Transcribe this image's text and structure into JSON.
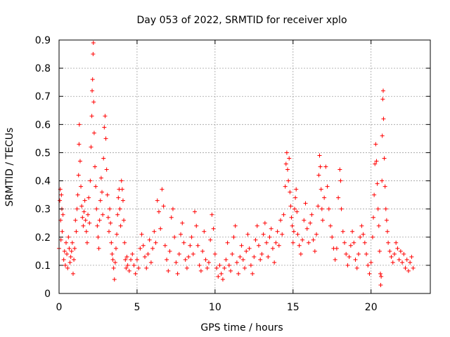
{
  "chart_data": {
    "type": "scatter",
    "title": "Day 053 of 2022, SRMTID for receiver xplo",
    "xlabel": "GPS time / hours",
    "ylabel": "SRMTID / TECUs",
    "xlim": [
      0,
      23.8
    ],
    "ylim": [
      0,
      0.9
    ],
    "x_ticks": [
      0,
      5,
      10,
      15,
      20
    ],
    "x_tick_labels": [
      "0",
      "5",
      "10",
      "15",
      "20"
    ],
    "y_ticks": [
      0,
      0.1,
      0.2,
      0.3,
      0.4,
      0.5,
      0.6,
      0.7,
      0.8,
      0.9
    ],
    "y_tick_labels": [
      "0",
      "0.1",
      "0.2",
      "0.3",
      "0.4",
      "0.5",
      "0.6",
      "0.7",
      "0.8",
      "0.9"
    ],
    "grid": true,
    "marker": "plus",
    "color": "#ff0000",
    "series": [
      {
        "name": "SRMTID",
        "points": [
          [
            0.0,
            0.16
          ],
          [
            0.05,
            0.33
          ],
          [
            0.08,
            0.37
          ],
          [
            0.1,
            0.26
          ],
          [
            0.12,
            0.19
          ],
          [
            0.15,
            0.35
          ],
          [
            0.18,
            0.3
          ],
          [
            0.2,
            0.22
          ],
          [
            0.25,
            0.28
          ],
          [
            0.3,
            0.12
          ],
          [
            0.35,
            0.15
          ],
          [
            0.4,
            0.1
          ],
          [
            0.45,
            0.18
          ],
          [
            0.5,
            0.14
          ],
          [
            0.55,
            0.09
          ],
          [
            0.6,
            0.2
          ],
          [
            0.65,
            0.16
          ],
          [
            0.7,
            0.11
          ],
          [
            0.75,
            0.13
          ],
          [
            0.8,
            0.15
          ],
          [
            0.85,
            0.18
          ],
          [
            0.9,
            0.07
          ],
          [
            0.95,
            0.12
          ],
          [
            1.0,
            0.16
          ],
          [
            1.05,
            0.26
          ],
          [
            1.1,
            0.22
          ],
          [
            1.15,
            0.3
          ],
          [
            1.2,
            0.35
          ],
          [
            1.25,
            0.42
          ],
          [
            1.28,
            0.53
          ],
          [
            1.3,
            0.6
          ],
          [
            1.35,
            0.47
          ],
          [
            1.4,
            0.38
          ],
          [
            1.45,
            0.31
          ],
          [
            1.5,
            0.27
          ],
          [
            1.55,
            0.24
          ],
          [
            1.6,
            0.29
          ],
          [
            1.65,
            0.33
          ],
          [
            1.7,
            0.26
          ],
          [
            1.75,
            0.22
          ],
          [
            1.8,
            0.18
          ],
          [
            1.85,
            0.28
          ],
          [
            1.9,
            0.34
          ],
          [
            1.95,
            0.25
          ],
          [
            2.0,
            0.4
          ],
          [
            2.05,
            0.52
          ],
          [
            2.1,
            0.63
          ],
          [
            2.12,
            0.72
          ],
          [
            2.15,
            0.76
          ],
          [
            2.18,
            0.85
          ],
          [
            2.2,
            0.89
          ],
          [
            2.22,
            0.68
          ],
          [
            2.25,
            0.57
          ],
          [
            2.3,
            0.45
          ],
          [
            2.35,
            0.38
          ],
          [
            2.4,
            0.3
          ],
          [
            2.45,
            0.24
          ],
          [
            2.5,
            0.2
          ],
          [
            2.55,
            0.16
          ],
          [
            2.6,
            0.26
          ],
          [
            2.65,
            0.33
          ],
          [
            2.7,
            0.41
          ],
          [
            2.75,
            0.36
          ],
          [
            2.8,
            0.28
          ],
          [
            2.85,
            0.48
          ],
          [
            2.9,
            0.59
          ],
          [
            2.95,
            0.63
          ],
          [
            3.0,
            0.55
          ],
          [
            3.05,
            0.44
          ],
          [
            3.1,
            0.35
          ],
          [
            3.15,
            0.27
          ],
          [
            3.2,
            0.22
          ],
          [
            3.25,
            0.3
          ],
          [
            3.3,
            0.25
          ],
          [
            3.35,
            0.18
          ],
          [
            3.4,
            0.14
          ],
          [
            3.45,
            0.12
          ],
          [
            3.5,
            0.09
          ],
          [
            3.55,
            0.05
          ],
          [
            3.6,
            0.11
          ],
          [
            3.65,
            0.16
          ],
          [
            3.7,
            0.21
          ],
          [
            3.75,
            0.28
          ],
          [
            3.8,
            0.34
          ],
          [
            3.85,
            0.37
          ],
          [
            3.9,
            0.3
          ],
          [
            3.95,
            0.24
          ],
          [
            4.0,
            0.4
          ],
          [
            4.05,
            0.37
          ],
          [
            4.1,
            0.33
          ],
          [
            4.15,
            0.26
          ],
          [
            4.2,
            0.18
          ],
          [
            4.25,
            0.12
          ],
          [
            4.3,
            0.09
          ],
          [
            4.35,
            0.13
          ],
          [
            4.4,
            0.1
          ],
          [
            4.5,
            0.08
          ],
          [
            4.6,
            0.12
          ],
          [
            4.7,
            0.14
          ],
          [
            4.8,
            0.1
          ],
          [
            4.9,
            0.07
          ],
          [
            5.0,
            0.12
          ],
          [
            5.1,
            0.09
          ],
          [
            5.2,
            0.16
          ],
          [
            5.3,
            0.21
          ],
          [
            5.4,
            0.17
          ],
          [
            5.5,
            0.13
          ],
          [
            5.6,
            0.09
          ],
          [
            5.7,
            0.14
          ],
          [
            5.8,
            0.19
          ],
          [
            5.9,
            0.11
          ],
          [
            6.0,
            0.16
          ],
          [
            6.1,
            0.22
          ],
          [
            6.2,
            0.18
          ],
          [
            6.3,
            0.33
          ],
          [
            6.4,
            0.29
          ],
          [
            6.5,
            0.23
          ],
          [
            6.6,
            0.37
          ],
          [
            6.7,
            0.31
          ],
          [
            6.8,
            0.17
          ],
          [
            6.9,
            0.12
          ],
          [
            7.0,
            0.08
          ],
          [
            7.1,
            0.15
          ],
          [
            7.2,
            0.27
          ],
          [
            7.3,
            0.3
          ],
          [
            7.4,
            0.2
          ],
          [
            7.5,
            0.11
          ],
          [
            7.6,
            0.07
          ],
          [
            7.7,
            0.14
          ],
          [
            7.8,
            0.21
          ],
          [
            7.9,
            0.25
          ],
          [
            8.0,
            0.18
          ],
          [
            8.1,
            0.12
          ],
          [
            8.2,
            0.09
          ],
          [
            8.3,
            0.13
          ],
          [
            8.4,
            0.17
          ],
          [
            8.5,
            0.2
          ],
          [
            8.6,
            0.14
          ],
          [
            8.7,
            0.29
          ],
          [
            8.8,
            0.24
          ],
          [
            8.9,
            0.17
          ],
          [
            9.0,
            0.1
          ],
          [
            9.1,
            0.08
          ],
          [
            9.2,
            0.15
          ],
          [
            9.3,
            0.22
          ],
          [
            9.4,
            0.12
          ],
          [
            9.5,
            0.09
          ],
          [
            9.6,
            0.11
          ],
          [
            9.7,
            0.19
          ],
          [
            9.8,
            0.28
          ],
          [
            9.9,
            0.23
          ],
          [
            10.0,
            0.14
          ],
          [
            10.1,
            0.09
          ],
          [
            10.2,
            0.06
          ],
          [
            10.3,
            0.1
          ],
          [
            10.4,
            0.07
          ],
          [
            10.5,
            0.05
          ],
          [
            10.6,
            0.09
          ],
          [
            10.7,
            0.12
          ],
          [
            10.8,
            0.18
          ],
          [
            10.9,
            0.1
          ],
          [
            11.0,
            0.08
          ],
          [
            11.1,
            0.14
          ],
          [
            11.2,
            0.2
          ],
          [
            11.3,
            0.24
          ],
          [
            11.4,
            0.11
          ],
          [
            11.5,
            0.07
          ],
          [
            11.6,
            0.13
          ],
          [
            11.7,
            0.17
          ],
          [
            11.8,
            0.12
          ],
          [
            11.9,
            0.09
          ],
          [
            12.0,
            0.15
          ],
          [
            12.1,
            0.21
          ],
          [
            12.2,
            0.16
          ],
          [
            12.3,
            0.1
          ],
          [
            12.4,
            0.07
          ],
          [
            12.5,
            0.13
          ],
          [
            12.6,
            0.19
          ],
          [
            12.7,
            0.24
          ],
          [
            12.8,
            0.17
          ],
          [
            12.9,
            0.12
          ],
          [
            13.0,
            0.14
          ],
          [
            13.1,
            0.21
          ],
          [
            13.2,
            0.25
          ],
          [
            13.3,
            0.18
          ],
          [
            13.4,
            0.13
          ],
          [
            13.5,
            0.2
          ],
          [
            13.6,
            0.23
          ],
          [
            13.7,
            0.16
          ],
          [
            13.8,
            0.11
          ],
          [
            13.9,
            0.18
          ],
          [
            14.0,
            0.22
          ],
          [
            14.1,
            0.17
          ],
          [
            14.2,
            0.26
          ],
          [
            14.3,
            0.21
          ],
          [
            14.4,
            0.28
          ],
          [
            14.5,
            0.38
          ],
          [
            14.55,
            0.46
          ],
          [
            14.6,
            0.5
          ],
          [
            14.65,
            0.44
          ],
          [
            14.7,
            0.4
          ],
          [
            14.75,
            0.48
          ],
          [
            14.8,
            0.36
          ],
          [
            14.85,
            0.31
          ],
          [
            14.9,
            0.27
          ],
          [
            14.95,
            0.24
          ],
          [
            15.0,
            0.18
          ],
          [
            15.05,
            0.22
          ],
          [
            15.1,
            0.3
          ],
          [
            15.15,
            0.34
          ],
          [
            15.2,
            0.37
          ],
          [
            15.25,
            0.29
          ],
          [
            15.3,
            0.21
          ],
          [
            15.4,
            0.17
          ],
          [
            15.5,
            0.14
          ],
          [
            15.6,
            0.19
          ],
          [
            15.7,
            0.26
          ],
          [
            15.8,
            0.32
          ],
          [
            15.9,
            0.23
          ],
          [
            16.0,
            0.18
          ],
          [
            16.1,
            0.25
          ],
          [
            16.2,
            0.28
          ],
          [
            16.3,
            0.19
          ],
          [
            16.4,
            0.15
          ],
          [
            16.5,
            0.21
          ],
          [
            16.6,
            0.31
          ],
          [
            16.65,
            0.42
          ],
          [
            16.7,
            0.49
          ],
          [
            16.75,
            0.45
          ],
          [
            16.8,
            0.37
          ],
          [
            16.85,
            0.3
          ],
          [
            16.9,
            0.26
          ],
          [
            17.0,
            0.34
          ],
          [
            17.1,
            0.45
          ],
          [
            17.2,
            0.38
          ],
          [
            17.3,
            0.3
          ],
          [
            17.4,
            0.24
          ],
          [
            17.5,
            0.2
          ],
          [
            17.6,
            0.16
          ],
          [
            17.7,
            0.12
          ],
          [
            17.8,
            0.16
          ],
          [
            17.9,
            0.34
          ],
          [
            18.0,
            0.44
          ],
          [
            18.05,
            0.4
          ],
          [
            18.1,
            0.3
          ],
          [
            18.2,
            0.22
          ],
          [
            18.3,
            0.18
          ],
          [
            18.4,
            0.14
          ],
          [
            18.5,
            0.1
          ],
          [
            18.6,
            0.13
          ],
          [
            18.7,
            0.17
          ],
          [
            18.8,
            0.22
          ],
          [
            18.9,
            0.18
          ],
          [
            19.0,
            0.12
          ],
          [
            19.1,
            0.09
          ],
          [
            19.2,
            0.14
          ],
          [
            19.3,
            0.2
          ],
          [
            19.4,
            0.24
          ],
          [
            19.5,
            0.21
          ],
          [
            19.6,
            0.18
          ],
          [
            19.7,
            0.14
          ],
          [
            19.8,
            0.1
          ],
          [
            19.9,
            0.07
          ],
          [
            20.0,
            0.11
          ],
          [
            20.1,
            0.2
          ],
          [
            20.15,
            0.27
          ],
          [
            20.2,
            0.35
          ],
          [
            20.25,
            0.46
          ],
          [
            20.3,
            0.53
          ],
          [
            20.35,
            0.47
          ],
          [
            20.4,
            0.39
          ],
          [
            20.45,
            0.3
          ],
          [
            20.5,
            0.24
          ],
          [
            20.55,
            0.15
          ],
          [
            20.6,
            0.07
          ],
          [
            20.62,
            0.03
          ],
          [
            20.65,
            0.06
          ],
          [
            20.7,
            0.4
          ],
          [
            20.72,
            0.56
          ],
          [
            20.75,
            0.69
          ],
          [
            20.78,
            0.72
          ],
          [
            20.8,
            0.62
          ],
          [
            20.85,
            0.48
          ],
          [
            20.9,
            0.38
          ],
          [
            20.95,
            0.3
          ],
          [
            21.0,
            0.26
          ],
          [
            21.05,
            0.22
          ],
          [
            21.1,
            0.18
          ],
          [
            21.2,
            0.15
          ],
          [
            21.3,
            0.13
          ],
          [
            21.4,
            0.11
          ],
          [
            21.5,
            0.14
          ],
          [
            21.6,
            0.18
          ],
          [
            21.7,
            0.16
          ],
          [
            21.8,
            0.12
          ],
          [
            21.9,
            0.15
          ],
          [
            22.0,
            0.11
          ],
          [
            22.1,
            0.14
          ],
          [
            22.2,
            0.09
          ],
          [
            22.3,
            0.12
          ],
          [
            22.4,
            0.08
          ],
          [
            22.5,
            0.11
          ],
          [
            22.6,
            0.13
          ],
          [
            22.7,
            0.09
          ]
        ]
      }
    ]
  }
}
